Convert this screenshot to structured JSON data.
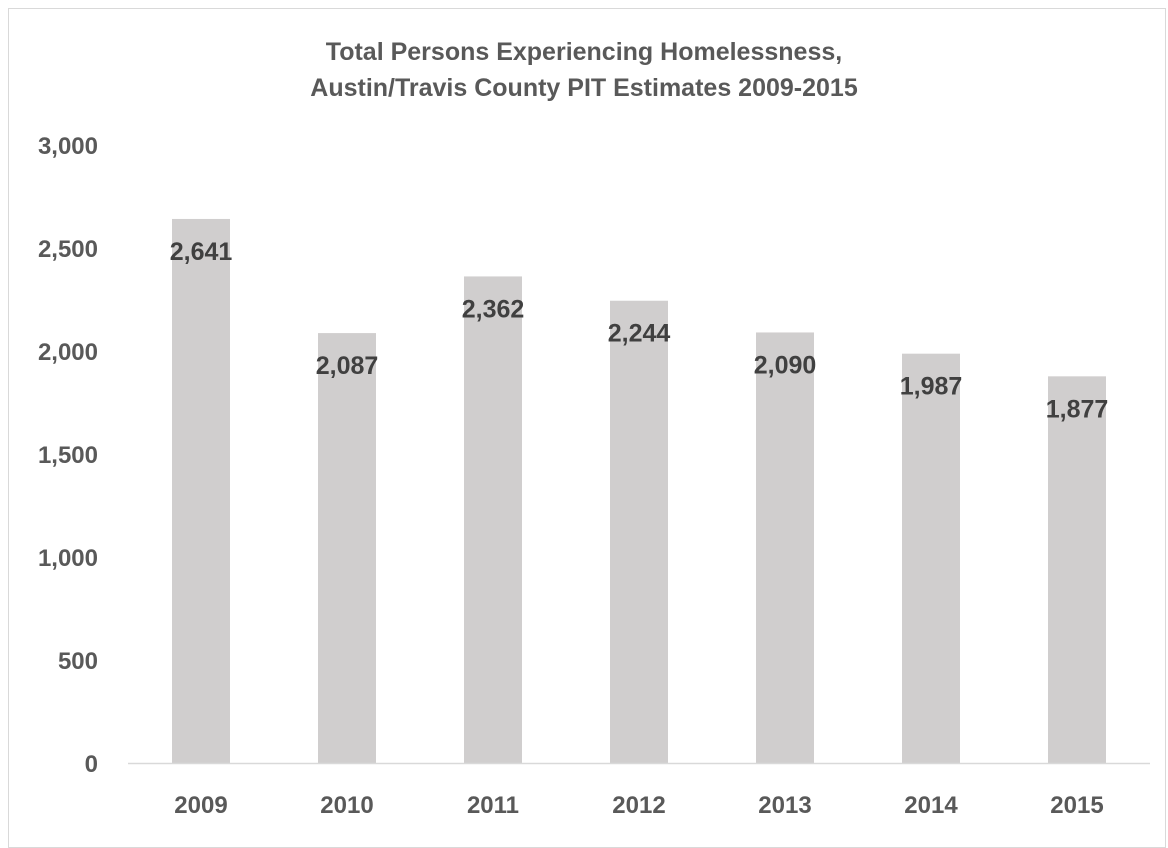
{
  "chart_data": {
    "type": "bar",
    "title": "Total Persons Experiencing Homelessness,",
    "subtitle": "Austin/Travis County PIT Estimates 2009-2015",
    "xlabel": "",
    "ylabel": "",
    "categories": [
      "2009",
      "2010",
      "2011",
      "2012",
      "2013",
      "2014",
      "2015"
    ],
    "values": [
      2641,
      2087,
      2362,
      2244,
      2090,
      1987,
      1877
    ],
    "data_labels": [
      "2,641",
      "2,087",
      "2,362",
      "2,244",
      "2,090",
      "1,987",
      "1,877"
    ],
    "y_ticks": [
      "0",
      "500",
      "1,000",
      "1,500",
      "2,000",
      "2,500",
      "3,000"
    ],
    "ylim": [
      0,
      3000
    ],
    "grid": false,
    "legend": "none",
    "bar_color": "#d0cece"
  }
}
